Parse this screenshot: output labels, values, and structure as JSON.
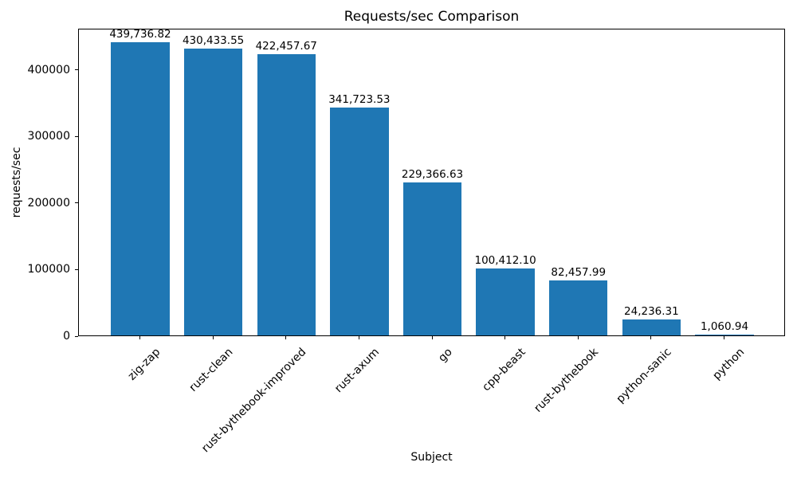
{
  "chart_data": {
    "type": "bar",
    "title": "Requests/sec Comparison",
    "xlabel": "Subject",
    "ylabel": "requests/sec",
    "categories": [
      "zig-zap",
      "rust-clean",
      "rust-bythebook-improved",
      "rust-axum",
      "go",
      "cpp-beast",
      "rust-bythebook",
      "python-sanic",
      "python"
    ],
    "values": [
      439736.82,
      430433.55,
      422457.67,
      341723.53,
      229366.63,
      100412.1,
      82457.99,
      24236.31,
      1060.94
    ],
    "value_labels": [
      "439,736.82",
      "430,433.55",
      "422,457.67",
      "341,723.53",
      "229,366.63",
      "100,412.10",
      "82,457.99",
      "24,236.31",
      "1,060.94"
    ],
    "yticks": [
      0,
      100000,
      200000,
      300000,
      400000
    ],
    "ytick_labels": [
      "0",
      "100000",
      "200000",
      "300000",
      "400000"
    ],
    "ylim": [
      0,
      461723.66
    ],
    "bar_color": "#1f77b4",
    "grid": false,
    "legend": false
  }
}
